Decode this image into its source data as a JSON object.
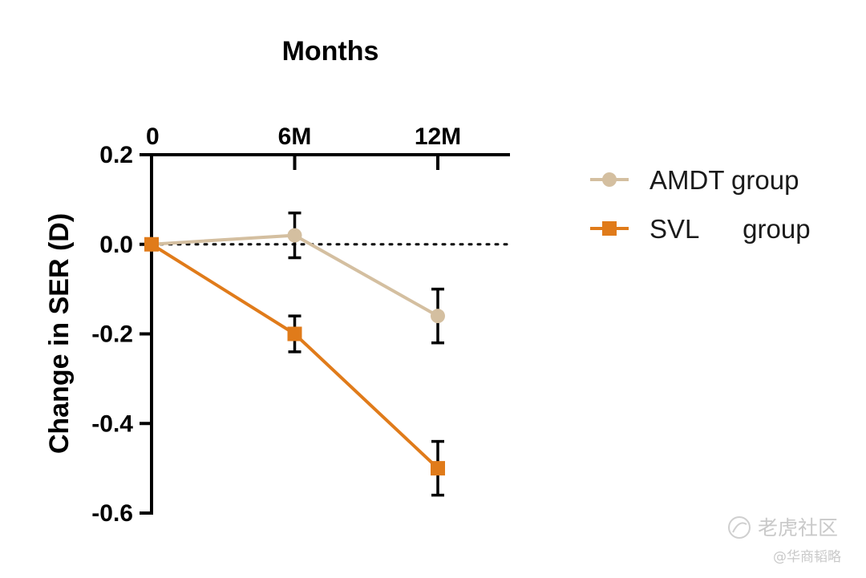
{
  "chart_data": {
    "type": "line",
    "title": "",
    "xlabel": "Months",
    "ylabel": "Change in SER (D)",
    "categories": [
      "0",
      "6M",
      "12M"
    ],
    "x_axis_position": "top",
    "ylim": [
      -0.6,
      0.2
    ],
    "yticks": [
      0.2,
      0.0,
      -0.2,
      -0.4,
      -0.6
    ],
    "ytick_labels": [
      "0.2",
      "0.0",
      "-0.2",
      "-0.4",
      "-0.6"
    ],
    "reference_line": {
      "y": 0.0,
      "style": "dotted"
    },
    "grid": false,
    "legend_position": "right",
    "series": [
      {
        "name": "AMDT group",
        "marker": "circle",
        "color": "#d4bfa0",
        "values": [
          0.0,
          0.02,
          -0.16
        ],
        "error": [
          0.0,
          0.05,
          0.06
        ]
      },
      {
        "name": "SVL      group",
        "marker": "square",
        "color": "#e07b1a",
        "values": [
          0.0,
          -0.2,
          -0.5
        ],
        "error": [
          0.0,
          0.04,
          0.06
        ]
      }
    ]
  },
  "watermark": {
    "brand": "老虎社区",
    "source": "@华商韬略"
  }
}
